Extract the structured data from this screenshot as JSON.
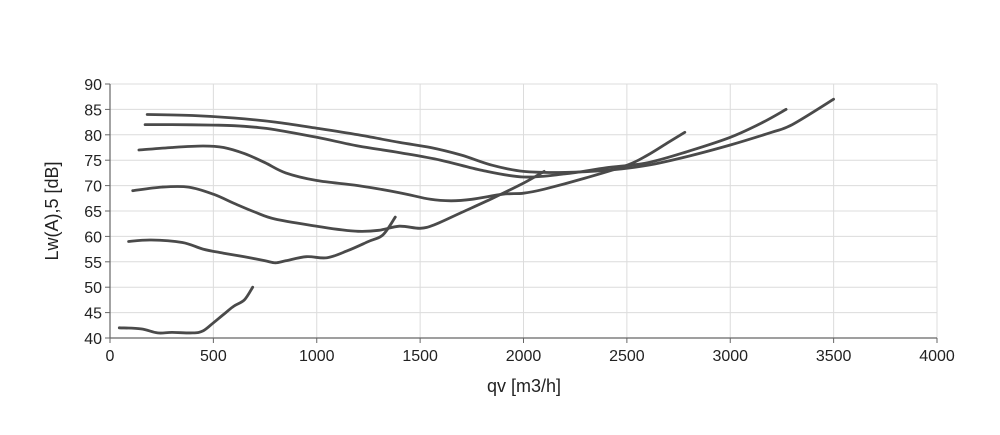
{
  "chart_data": {
    "type": "line",
    "title": "",
    "xlabel": "qv [m3/h]",
    "ylabel": "Lw(A),5 [dB]",
    "xlim": [
      0,
      4000
    ],
    "ylim": [
      40,
      90
    ],
    "xticks": [
      0,
      500,
      1000,
      1500,
      2000,
      2500,
      3000,
      3500,
      4000
    ],
    "yticks": [
      40,
      45,
      50,
      55,
      60,
      65,
      70,
      75,
      80,
      85,
      90
    ],
    "grid": true,
    "legend": "none",
    "line_color": "#4a4a4a",
    "series": [
      {
        "x": [
          180,
          400,
          600,
          800,
          1000,
          1200,
          1400,
          1550,
          1700,
          1850,
          2000,
          2200,
          2400,
          2600,
          2800,
          3000,
          3200,
          3300,
          3500
        ],
        "y": [
          84,
          83.8,
          83.3,
          82.5,
          81.3,
          80,
          78.5,
          77.5,
          76,
          74,
          72.8,
          72.6,
          73,
          74,
          75.8,
          78,
          80.5,
          82,
          87
        ]
      },
      {
        "x": [
          170,
          300,
          500,
          600,
          700,
          800,
          1000,
          1200,
          1400,
          1600,
          1800,
          2000,
          2200,
          2400,
          2600,
          2800,
          3000,
          3150,
          3270
        ],
        "y": [
          82,
          82,
          81.9,
          81.8,
          81.5,
          81,
          79.5,
          77.8,
          76.5,
          75,
          73,
          71.7,
          72.3,
          73.5,
          74.5,
          76.8,
          79.5,
          82.3,
          85
        ]
      },
      {
        "x": [
          140,
          300,
          450,
          550,
          650,
          750,
          850,
          1000,
          1200,
          1400,
          1550,
          1650,
          1750,
          1900,
          2000,
          2100,
          2300,
          2500,
          2600,
          2700,
          2780
        ],
        "y": [
          77,
          77.5,
          77.8,
          77.5,
          76.3,
          74.5,
          72.5,
          71,
          70,
          68.6,
          67.3,
          67,
          67.3,
          68.3,
          68.5,
          69.3,
          71.5,
          74,
          76,
          78.5,
          80.5
        ]
      },
      {
        "x": [
          110,
          250,
          380,
          500,
          600,
          700,
          800,
          1000,
          1100,
          1200,
          1300,
          1400,
          1500,
          1570,
          1700,
          1850,
          2000,
          2100
        ],
        "y": [
          69,
          69.7,
          69.7,
          68.3,
          66.5,
          64.8,
          63.4,
          62,
          61.4,
          61,
          61.2,
          62,
          61.6,
          62.3,
          64.7,
          67.5,
          70.5,
          72.8
        ]
      },
      {
        "x": [
          90,
          200,
          350,
          450,
          550,
          650,
          750,
          800,
          850,
          950,
          1050,
          1150,
          1250,
          1320,
          1380
        ],
        "y": [
          59,
          59.3,
          58.8,
          57.5,
          56.7,
          56,
          55.2,
          54.8,
          55.2,
          56,
          55.8,
          57.2,
          59,
          60.3,
          63.8
        ]
      },
      {
        "x": [
          45,
          150,
          230,
          300,
          400,
          450,
          500,
          560,
          600,
          650,
          690
        ],
        "y": [
          42,
          41.8,
          41,
          41.1,
          41,
          41.4,
          43,
          45,
          46.3,
          47.5,
          50
        ]
      }
    ]
  }
}
